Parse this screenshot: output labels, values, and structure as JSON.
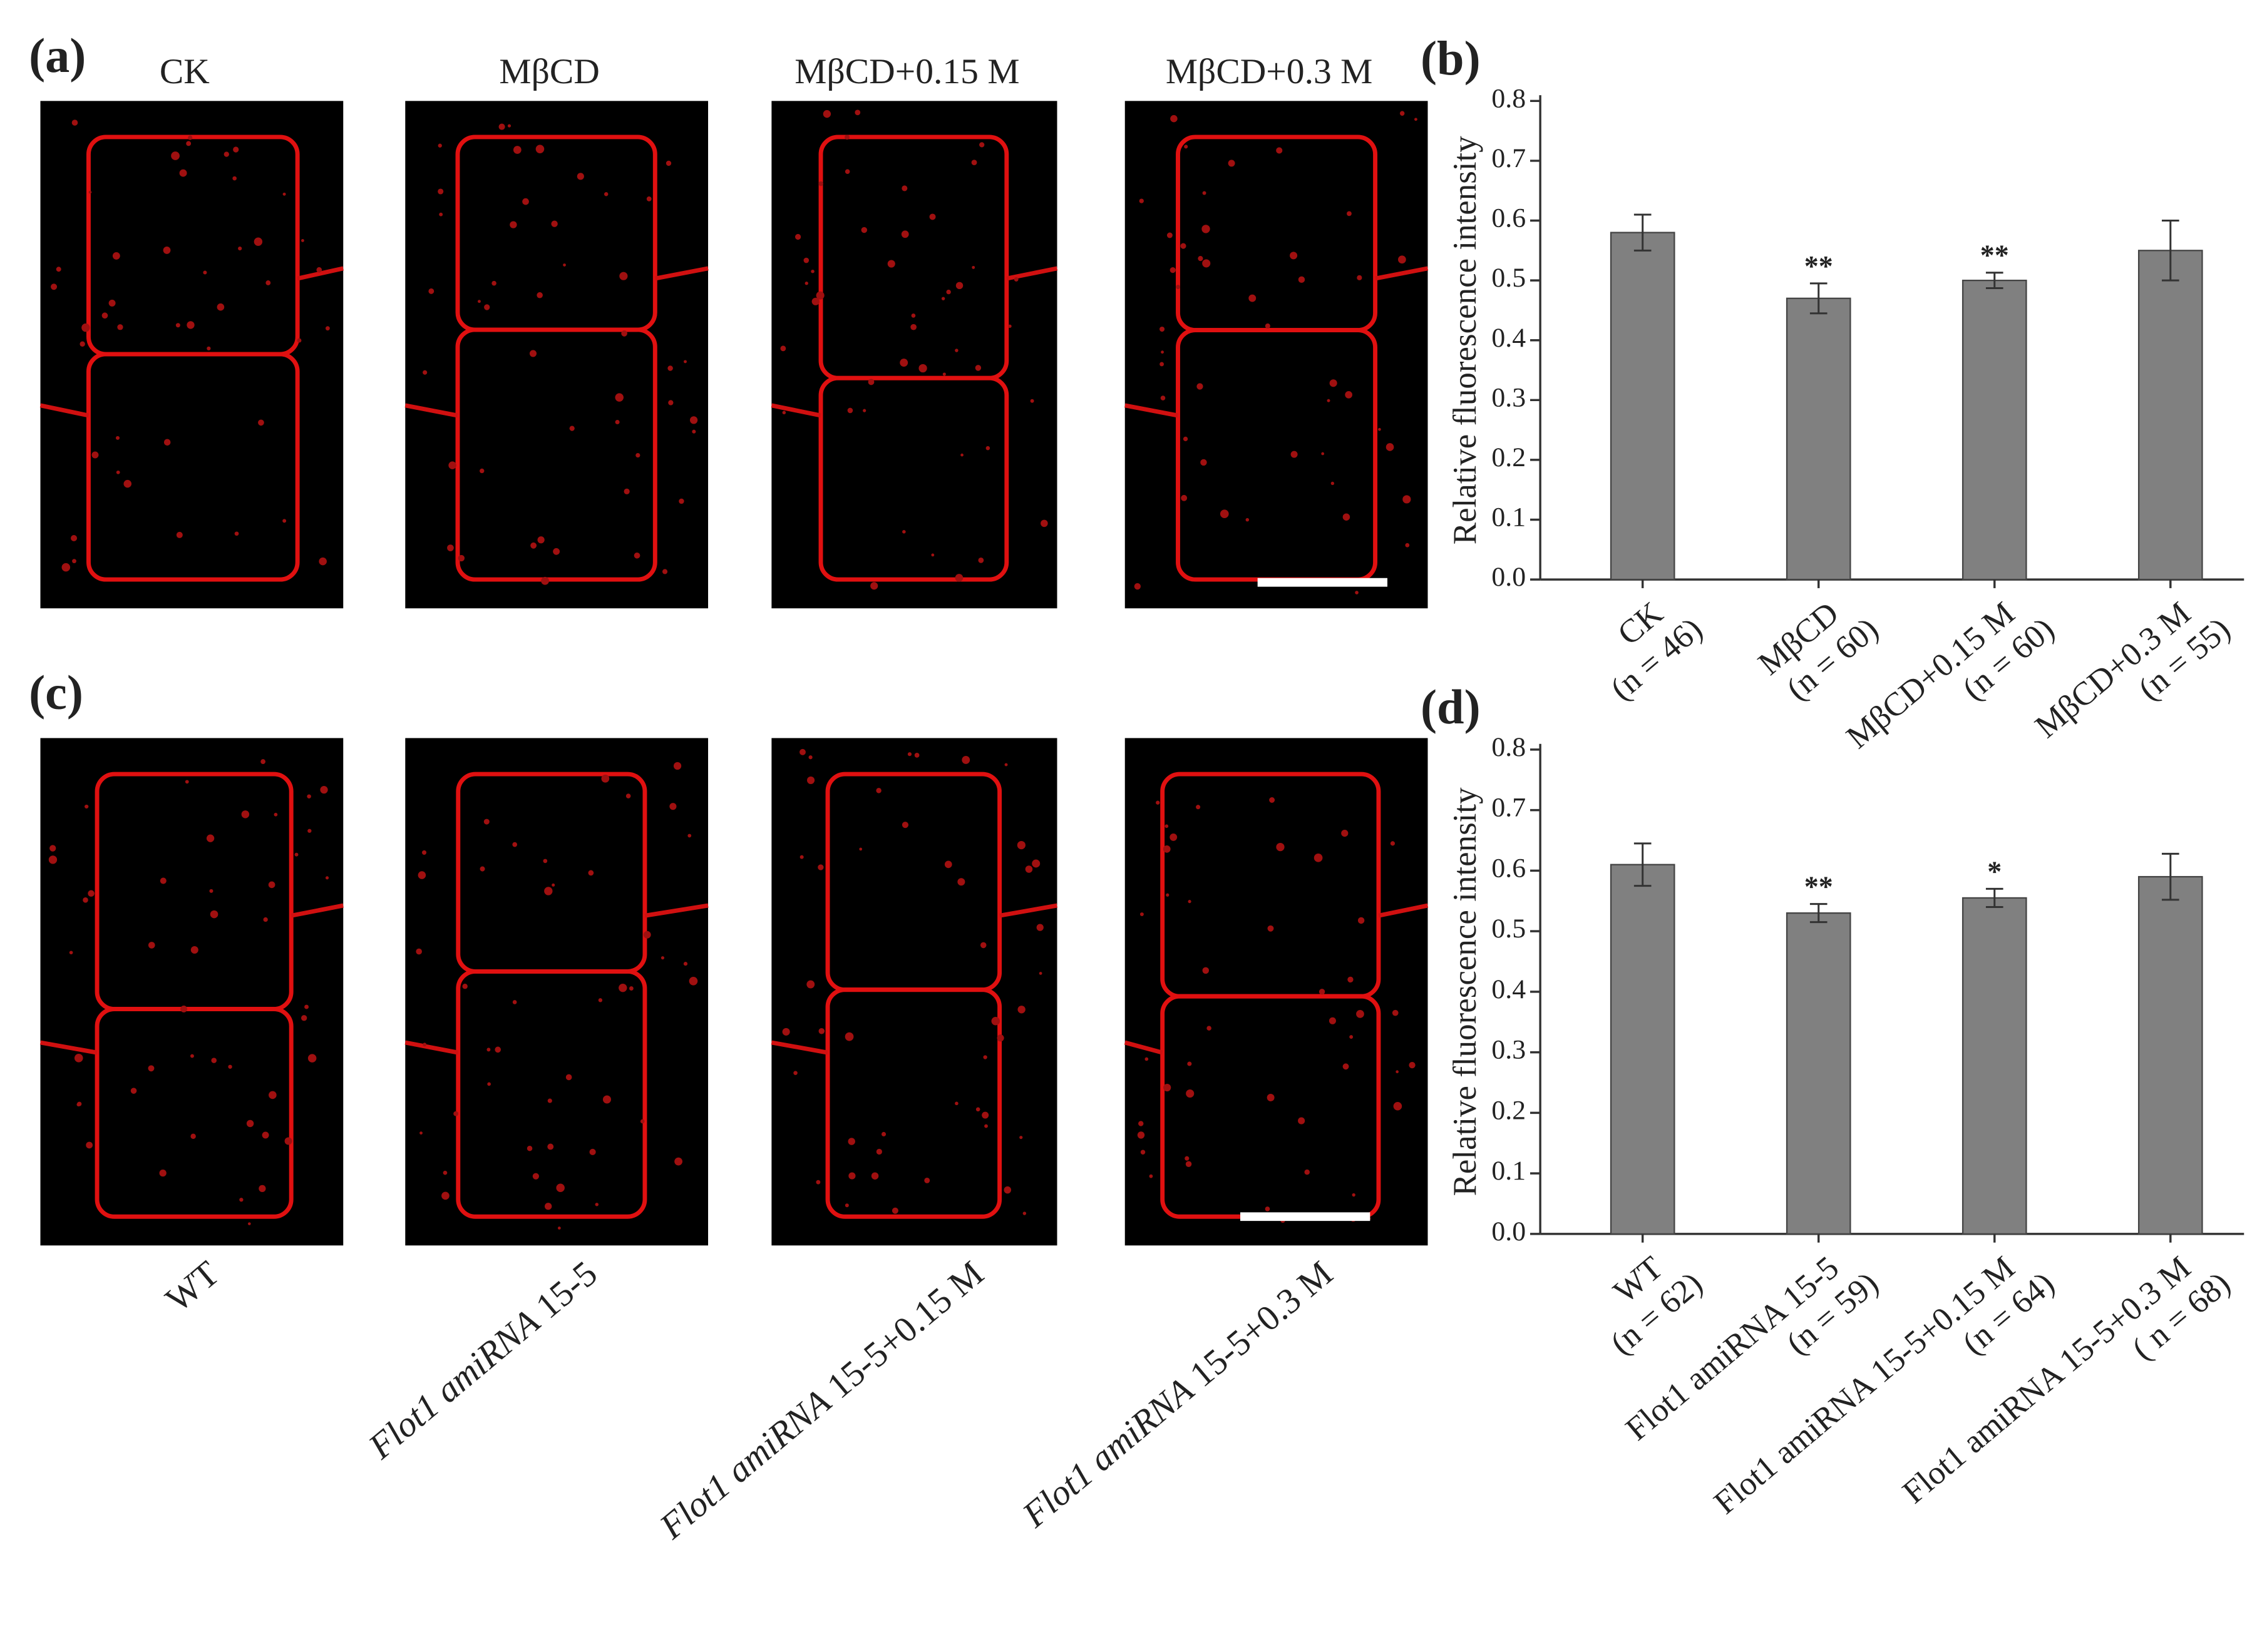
{
  "panels": [
    {
      "label": "(a)",
      "captions": [
        "CK",
        "MβCD",
        "MβCD+0.15 M",
        "MβCD+0.3 M"
      ]
    },
    {
      "label": "(c)",
      "captions": [
        [
          {
            "text": "WT",
            "italic": false
          }
        ],
        [
          {
            "text": "Flot1 amiRNA",
            "italic": true
          },
          {
            "text": " 15-5",
            "italic": false
          }
        ],
        [
          {
            "text": "Flot1 amiRNA",
            "italic": true
          },
          {
            "text": " 15-5+0.15 M",
            "italic": false
          }
        ],
        [
          {
            "text": "Flot1 amiRNA",
            "italic": true
          },
          {
            "text": " 15-5+0.3 M",
            "italic": false
          }
        ]
      ]
    }
  ],
  "chart_data": [
    {
      "type": "bar",
      "panel_label": "(b)",
      "y_label": "Relative fluorescence intensity",
      "categories": [
        "CK",
        "MβCD",
        "MβCD+0.15 M",
        "MβCD+0.3 M"
      ],
      "category_notes": [
        "(n = 46)",
        "(n = 60)",
        "(n = 60)",
        "(n = 55)"
      ],
      "values": [
        0.58,
        0.47,
        0.5,
        0.55
      ],
      "errors": [
        0.03,
        0.025,
        0.013,
        0.05
      ],
      "annotations": [
        null,
        "**",
        "**",
        null
      ],
      "color": "#808080",
      "ylim": [
        0,
        0.8
      ],
      "yticks": [
        {
          "value": 0,
          "label": "0.0"
        },
        0.1,
        0.2,
        0.3,
        0.4,
        0.5,
        0.6,
        0.7,
        0.8
      ]
    },
    {
      "type": "bar",
      "panel_label": "(d)",
      "y_label": "Relative fluorescence intensity",
      "categories": [
        "WT",
        "Flot1 amiRNA 15-5",
        "Flot1 amiRNA 15-5+0.15 M",
        "Flot1 amiRNA 15-5+0.3 M"
      ],
      "category_notes": [
        "(n = 62)",
        "(n = 59)",
        "(n = 64)",
        "( n = 68)"
      ],
      "values": [
        0.61,
        0.53,
        0.555,
        0.59
      ],
      "errors": [
        0.035,
        0.015,
        0.015,
        0.038
      ],
      "annotations": [
        null,
        "**",
        "*",
        null
      ],
      "color": "#808080",
      "ylim": [
        0,
        0.8
      ],
      "yticks": [
        {
          "value": 0,
          "label": "0.0"
        },
        0.1,
        0.2,
        0.3,
        0.4,
        0.5,
        0.6,
        0.7,
        0.8
      ]
    }
  ]
}
